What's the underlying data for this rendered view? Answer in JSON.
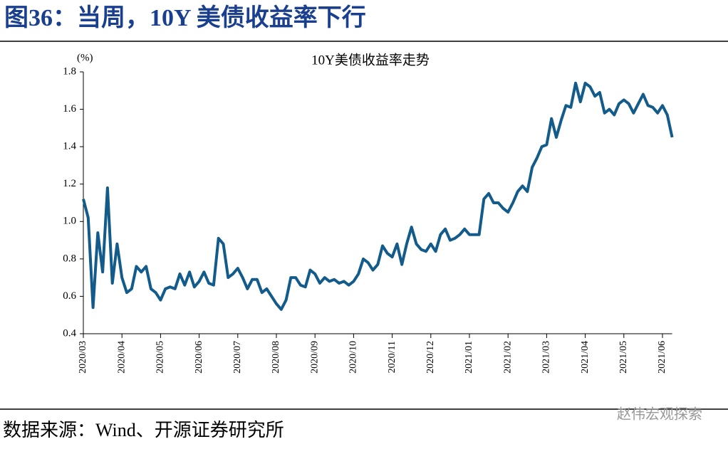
{
  "header": {
    "title": "图36：当周，10Y 美债收益率下行"
  },
  "chart_data": {
    "type": "line",
    "title": "10Y美债收益率走势",
    "y_label": "(%)",
    "color": "#135b8a",
    "x": [
      "2020/03",
      "2020/03",
      "2020/03",
      "2020/03",
      "2020/03",
      "2020/03",
      "2020/03",
      "2020/03",
      "2020/04",
      "2020/04",
      "2020/04",
      "2020/04",
      "2020/04",
      "2020/04",
      "2020/04",
      "2020/04",
      "2020/05",
      "2020/05",
      "2020/05",
      "2020/05",
      "2020/05",
      "2020/05",
      "2020/05",
      "2020/05",
      "2020/06",
      "2020/06",
      "2020/06",
      "2020/06",
      "2020/06",
      "2020/06",
      "2020/06",
      "2020/06",
      "2020/07",
      "2020/07",
      "2020/07",
      "2020/07",
      "2020/07",
      "2020/07",
      "2020/07",
      "2020/07",
      "2020/08",
      "2020/08",
      "2020/08",
      "2020/08",
      "2020/08",
      "2020/08",
      "2020/08",
      "2020/08",
      "2020/09",
      "2020/09",
      "2020/09",
      "2020/09",
      "2020/09",
      "2020/09",
      "2020/09",
      "2020/09",
      "2020/10",
      "2020/10",
      "2020/10",
      "2020/10",
      "2020/10",
      "2020/10",
      "2020/10",
      "2020/10",
      "2020/11",
      "2020/11",
      "2020/11",
      "2020/11",
      "2020/11",
      "2020/11",
      "2020/11",
      "2020/11",
      "2020/12",
      "2020/12",
      "2020/12",
      "2020/12",
      "2020/12",
      "2020/12",
      "2020/12",
      "2020/12",
      "2021/01",
      "2021/01",
      "2021/01",
      "2021/01",
      "2021/01",
      "2021/01",
      "2021/01",
      "2021/01",
      "2021/02",
      "2021/02",
      "2021/02",
      "2021/02",
      "2021/02",
      "2021/02",
      "2021/02",
      "2021/02",
      "2021/03",
      "2021/03",
      "2021/03",
      "2021/03",
      "2021/03",
      "2021/03",
      "2021/03",
      "2021/03",
      "2021/04",
      "2021/04",
      "2021/04",
      "2021/04",
      "2021/04",
      "2021/04",
      "2021/04",
      "2021/04",
      "2021/05",
      "2021/05",
      "2021/05",
      "2021/05",
      "2021/05",
      "2021/05",
      "2021/05",
      "2021/05",
      "2021/06",
      "2021/06",
      "2021/06"
    ],
    "values": [
      1.12,
      1.02,
      0.54,
      0.94,
      0.73,
      1.18,
      0.67,
      0.88,
      0.7,
      0.62,
      0.64,
      0.76,
      0.73,
      0.76,
      0.64,
      0.62,
      0.58,
      0.64,
      0.65,
      0.64,
      0.72,
      0.66,
      0.73,
      0.65,
      0.68,
      0.73,
      0.67,
      0.66,
      0.91,
      0.88,
      0.7,
      0.72,
      0.75,
      0.7,
      0.64,
      0.69,
      0.69,
      0.62,
      0.64,
      0.6,
      0.56,
      0.53,
      0.58,
      0.7,
      0.7,
      0.66,
      0.65,
      0.74,
      0.72,
      0.67,
      0.7,
      0.68,
      0.69,
      0.67,
      0.68,
      0.66,
      0.68,
      0.72,
      0.8,
      0.78,
      0.74,
      0.77,
      0.87,
      0.83,
      0.81,
      0.88,
      0.77,
      0.88,
      0.97,
      0.88,
      0.85,
      0.84,
      0.88,
      0.84,
      0.93,
      0.96,
      0.9,
      0.91,
      0.93,
      0.96,
      0.93,
      0.93,
      0.93,
      1.12,
      1.15,
      1.1,
      1.1,
      1.07,
      1.05,
      1.1,
      1.16,
      1.19,
      1.16,
      1.29,
      1.34,
      1.4,
      1.41,
      1.55,
      1.45,
      1.54,
      1.62,
      1.61,
      1.74,
      1.64,
      1.74,
      1.72,
      1.67,
      1.69,
      1.58,
      1.6,
      1.57,
      1.63,
      1.65,
      1.63,
      1.58,
      1.63,
      1.68,
      1.62,
      1.61,
      1.58,
      1.62,
      1.57,
      1.45
    ],
    "xticks": [
      "2020/03",
      "2020/04",
      "2020/05",
      "2020/06",
      "2020/07",
      "2020/08",
      "2020/09",
      "2020/10",
      "2020/11",
      "2020/12",
      "2021/01",
      "2021/02",
      "2021/03",
      "2021/04",
      "2021/05",
      "2021/06"
    ],
    "ylim": [
      0.4,
      1.8
    ],
    "yticks": [
      0.4,
      0.6,
      0.8,
      {
        "value": 1.0,
        "label": "1.0"
      },
      1.2,
      1.4,
      1.6,
      1.8
    ]
  },
  "source": "数据来源：Wind、开源证券研究所",
  "watermark": "赵伟宏观探索"
}
